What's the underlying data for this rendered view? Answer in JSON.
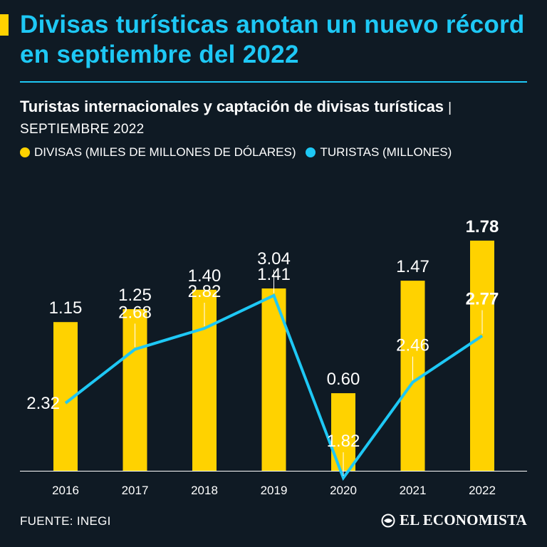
{
  "header": {
    "title": "Divisas turísticas anotan un nuevo récord en septiembre del 2022",
    "subtitle_bold": "Turistas internacionales y captación de divisas turísticas",
    "subtitle_separator": "|",
    "subtitle_date": "SEPTIEMBRE 2022"
  },
  "colors": {
    "background": "#0f1a24",
    "accent": "#1ec8f5",
    "bars": "#ffd200"
  },
  "legend": {
    "divisas": "DIVISAS (MILES DE MILLONES DE DÓLARES)",
    "turistas": "TURISTAS (MILLONES)"
  },
  "chart_data": {
    "type": "bar",
    "categories": [
      "2016",
      "2017",
      "2018",
      "2019",
      "2020",
      "2021",
      "2022"
    ],
    "series": [
      {
        "name": "DIVISAS (MILES DE MILLONES DE DÓLARES)",
        "type": "bar",
        "values": [
          1.15,
          1.25,
          1.4,
          1.41,
          0.6,
          1.47,
          1.78
        ],
        "labels": [
          "1.15",
          "1.25",
          "1.40",
          "1.41",
          "0.60",
          "1.47",
          "1.78"
        ]
      },
      {
        "name": "TURISTAS (MILLONES)",
        "type": "line",
        "values": [
          2.32,
          2.68,
          2.82,
          3.04,
          1.82,
          2.46,
          2.77
        ],
        "labels": [
          "2.32",
          "2.68",
          "2.82",
          "3.04",
          "1.82",
          "2.46",
          "2.77"
        ]
      }
    ],
    "highlight": "2022",
    "title": "Turistas internacionales y captación de divisas turísticas",
    "xlabel": "",
    "ylabel": ""
  },
  "footer": {
    "source": "FUENTE: INEGI",
    "brand": "EL ECONOMISTA"
  }
}
